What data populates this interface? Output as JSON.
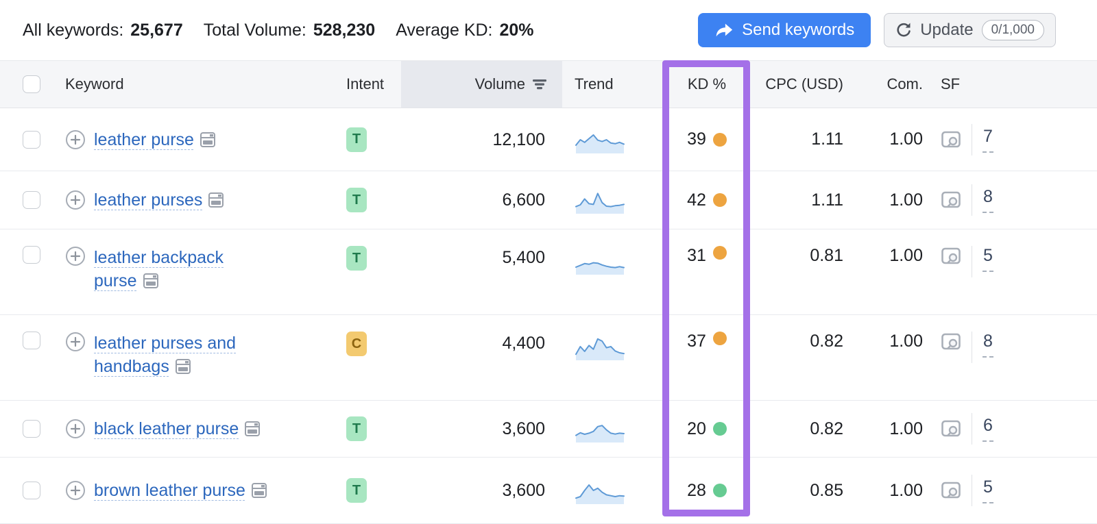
{
  "summary": {
    "all_keywords_label": "All keywords:",
    "all_keywords_value": "25,677",
    "total_volume_label": "Total Volume:",
    "total_volume_value": "528,230",
    "average_kd_label": "Average KD:",
    "average_kd_value": "20%"
  },
  "actions": {
    "send_keywords_label": "Send keywords",
    "update_label": "Update",
    "update_counter": "0/1,000"
  },
  "table": {
    "columns": {
      "keyword": "Keyword",
      "intent": "Intent",
      "volume": "Volume",
      "trend": "Trend",
      "kd": "KD %",
      "cpc": "CPC (USD)",
      "com": "Com.",
      "sf": "SF"
    },
    "rows": [
      {
        "keyword": "leather purse",
        "intent": "T",
        "volume": "12,100",
        "trend": [
          0.25,
          0.5,
          0.38,
          0.55,
          0.72,
          0.48,
          0.42,
          0.5,
          0.35,
          0.32,
          0.38,
          0.3
        ],
        "kd": "39",
        "kd_color": "#eda440",
        "cpc": "1.11",
        "com": "1.00",
        "sf": "7"
      },
      {
        "keyword": "leather purses",
        "intent": "T",
        "volume": "6,600",
        "trend": [
          0.2,
          0.28,
          0.55,
          0.33,
          0.3,
          0.8,
          0.38,
          0.22,
          0.2,
          0.24,
          0.26,
          0.3
        ],
        "kd": "42",
        "kd_color": "#eda440",
        "cpc": "1.11",
        "com": "1.00",
        "sf": "8"
      },
      {
        "keyword": "leather backpack purse",
        "intent": "T",
        "volume": "5,400",
        "trend": [
          0.22,
          0.3,
          0.38,
          0.35,
          0.42,
          0.4,
          0.32,
          0.26,
          0.22,
          0.2,
          0.24,
          0.2
        ],
        "kd": "31",
        "kd_color": "#eda440",
        "cpc": "0.81",
        "com": "1.00",
        "sf": "5"
      },
      {
        "keyword": "leather purses and handbags",
        "intent": "C",
        "volume": "4,400",
        "trend": [
          0.15,
          0.5,
          0.28,
          0.55,
          0.38,
          0.85,
          0.75,
          0.45,
          0.5,
          0.3,
          0.22,
          0.18
        ],
        "kd": "37",
        "kd_color": "#eda440",
        "cpc": "0.82",
        "com": "1.00",
        "sf": "8"
      },
      {
        "keyword": "black leather purse",
        "intent": "T",
        "volume": "3,600",
        "trend": [
          0.2,
          0.32,
          0.25,
          0.3,
          0.38,
          0.6,
          0.65,
          0.45,
          0.3,
          0.26,
          0.3,
          0.28
        ],
        "kd": "20",
        "kd_color": "#66cb92",
        "cpc": "0.82",
        "com": "1.00",
        "sf": "6"
      },
      {
        "keyword": "brown leather purse",
        "intent": "T",
        "volume": "3,600",
        "trend": [
          0.15,
          0.22,
          0.5,
          0.75,
          0.5,
          0.6,
          0.42,
          0.3,
          0.26,
          0.22,
          0.26,
          0.24
        ],
        "kd": "28",
        "kd_color": "#66cb92",
        "cpc": "0.85",
        "com": "1.00",
        "sf": "5"
      }
    ]
  },
  "icons": {
    "send": "forward-arrow-icon",
    "update": "refresh-icon",
    "add_keyword": "plus-circle-icon",
    "snippet": "serp-snippet-icon",
    "serp_preview": "serp-preview-icon",
    "sort": "sort-descending-icon"
  },
  "colors": {
    "accent_blue": "#3d82f2",
    "highlight_purple": "#a470e8",
    "kd_orange": "#eda440",
    "kd_green": "#66cb92",
    "link_blue": "#2c67bd",
    "intent_t_bg": "#a8e6c1",
    "intent_t_text": "#1f7a4d",
    "intent_c_bg": "#f3ca70",
    "intent_c_text": "#8c6410",
    "trend_line": "#5e9ad6",
    "trend_fill": "#d9e9f9"
  }
}
